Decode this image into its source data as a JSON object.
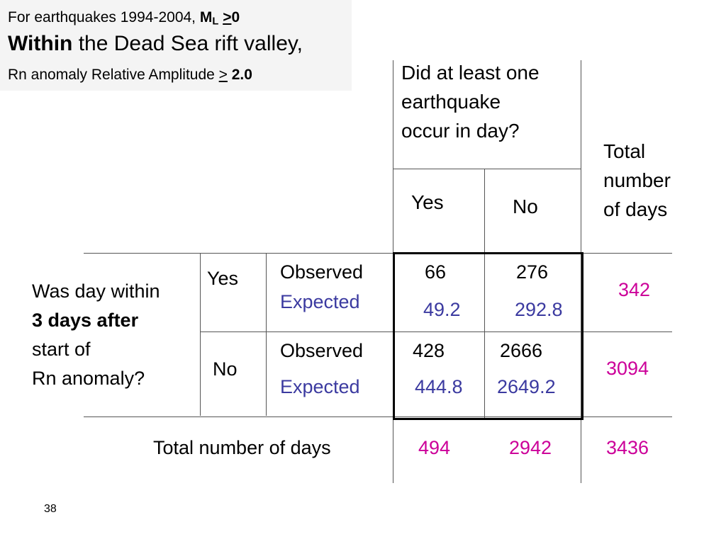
{
  "header": {
    "line1_prefix": "For earthquakes 1994-2004, ",
    "line1_m": "M",
    "line1_sub": "L",
    "line1_gt": ">",
    "line1_value": "0",
    "line2_bold": "Within",
    "line2_rest": " the Dead Sea rift valley,",
    "line3_prefix": "Rn anomaly Relative Amplitude ",
    "line3_gt": ">",
    "line3_value": " 2.0"
  },
  "colors": {
    "expected": "#3b3aa0",
    "totals": "#cc0099"
  },
  "table": {
    "col_question_lines": [
      "Did  at least one",
      "earthquake",
      "occur in day?"
    ],
    "col_yes": "Yes",
    "col_no": "No",
    "total_header_lines": [
      "Total",
      "number",
      "of days"
    ],
    "row_question": {
      "line1": "Was day within",
      "line2_bold": "3 days after",
      "line3": "start of",
      "line4": "Rn anomaly?"
    },
    "row_yes": "Yes",
    "row_no": "No",
    "observed_label": "Observed",
    "expected_label": "Expected",
    "cells": {
      "yes_yes_observed": "66",
      "yes_yes_expected": "49.2",
      "yes_no_observed": "276",
      "yes_no_expected": "292.8",
      "no_yes_observed": "428",
      "no_yes_expected": "444.8",
      "no_no_observed": "2666",
      "no_no_expected": "2649.2"
    },
    "row_totals": {
      "yes": "342",
      "no": "3094"
    },
    "total_row_label": "Total number of days",
    "col_totals": {
      "yes": "494",
      "no": "2942",
      "grand": "3436"
    }
  },
  "page_number": "38"
}
